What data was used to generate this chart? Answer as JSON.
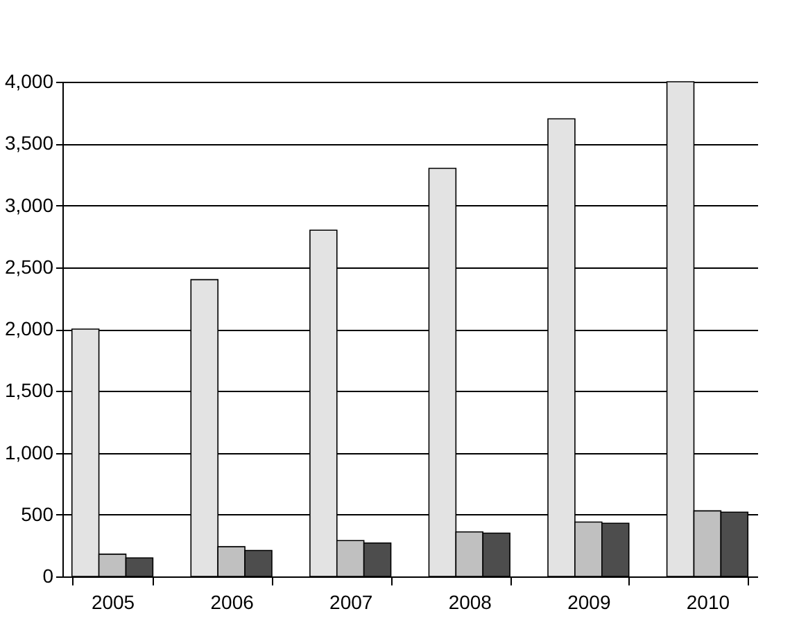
{
  "chart_data": {
    "type": "bar",
    "categories": [
      "2005",
      "2006",
      "2007",
      "2008",
      "2009",
      "2010"
    ],
    "series": [
      {
        "color": "#e3e3e3",
        "values": [
          2000,
          2400,
          2800,
          3300,
          3700,
          4000
        ]
      },
      {
        "color": "#c0c0c0",
        "values": [
          180,
          240,
          290,
          360,
          440,
          530
        ]
      },
      {
        "color": "#4d4d4d",
        "values": [
          150,
          210,
          270,
          350,
          430,
          520
        ]
      }
    ],
    "ylim": [
      0,
      4000
    ],
    "yticks": [
      0,
      500,
      {
        "value": 1000,
        "label": "1,000"
      },
      {
        "value": 1500,
        "label": "1,500"
      },
      {
        "value": 2000,
        "label": "2,000"
      },
      {
        "value": 2500,
        "label": "2,500"
      },
      {
        "value": 3000,
        "label": "3,000"
      },
      {
        "value": 3500,
        "label": "3,500"
      },
      {
        "value": 4000,
        "label": "4,000"
      }
    ],
    "grid": "y"
  }
}
